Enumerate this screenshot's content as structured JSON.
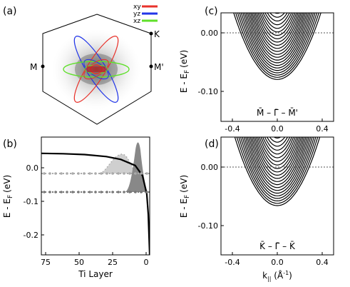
{
  "panel_a": {
    "label": "(a)",
    "points": {
      "K": "K",
      "M": "M",
      "M_prime": "M'"
    },
    "legend": [
      {
        "name": "xy",
        "color": "#e8322b"
      },
      {
        "name": "yz",
        "color": "#2135e8"
      },
      {
        "name": "xz",
        "color": "#5fe02a"
      }
    ]
  },
  "panel_b": {
    "label": "(b)",
    "ylabel": "E - E",
    "ylabel_sub": "F",
    "ylabel_unit": "(eV)",
    "xlabel": "Ti Layer",
    "xticks": [
      "75",
      "50",
      "25",
      "0"
    ],
    "yticks": [
      "0.0",
      "-0.1",
      "-0.2"
    ]
  },
  "panel_c": {
    "label": "(c)",
    "ylabel": "E - E",
    "ylabel_sub": "F",
    "ylabel_unit": "(eV)",
    "yticks": [
      "0.00",
      "-0.10"
    ],
    "xticks": [
      "-0.4",
      "0.0",
      "0.4"
    ],
    "path_label": "M̄ – Γ̄ – M̄'"
  },
  "panel_d": {
    "label": "(d)",
    "ylabel": "E - E",
    "ylabel_sub": "F",
    "ylabel_unit": "(eV)",
    "yticks": [
      "0.00",
      "-0.10"
    ],
    "xticks": [
      "-0.4",
      "0.0",
      "0.4"
    ],
    "path_label": "K̄ – Γ̄ – K̄",
    "xlabel": "k",
    "xlabel_sub": "||",
    "xlabel_unit_pre": " (Å",
    "xlabel_sup": "-1",
    "xlabel_unit_post": ")"
  },
  "chart_data": [
    {
      "type": "line",
      "panel": "b",
      "xlabel": "Ti Layer",
      "ylabel": "E - EF (eV)",
      "xlim": [
        75,
        0
      ],
      "ylim": [
        -0.25,
        0.04
      ],
      "series": [
        {
          "x": [
            75,
            60,
            45,
            30,
            20,
            10,
            5,
            2,
            1,
            0
          ],
          "y": [
            0.0,
            -0.001,
            -0.003,
            -0.008,
            -0.015,
            -0.03,
            -0.055,
            -0.1,
            -0.15,
            -0.25
          ]
        }
      ]
    },
    {
      "type": "line",
      "panel": "c",
      "ylabel": "E - EF (eV)",
      "xlim": [
        -0.5,
        0.5
      ],
      "ylim": [
        -0.16,
        0.06
      ],
      "min_band_energy": -0.075
    },
    {
      "type": "line",
      "panel": "d",
      "ylabel": "E - EF (eV)",
      "xlabel": "k|| (Å-1)",
      "xlim": [
        -0.5,
        0.5
      ],
      "ylim": [
        -0.16,
        0.06
      ],
      "min_band_energy": -0.068
    }
  ]
}
